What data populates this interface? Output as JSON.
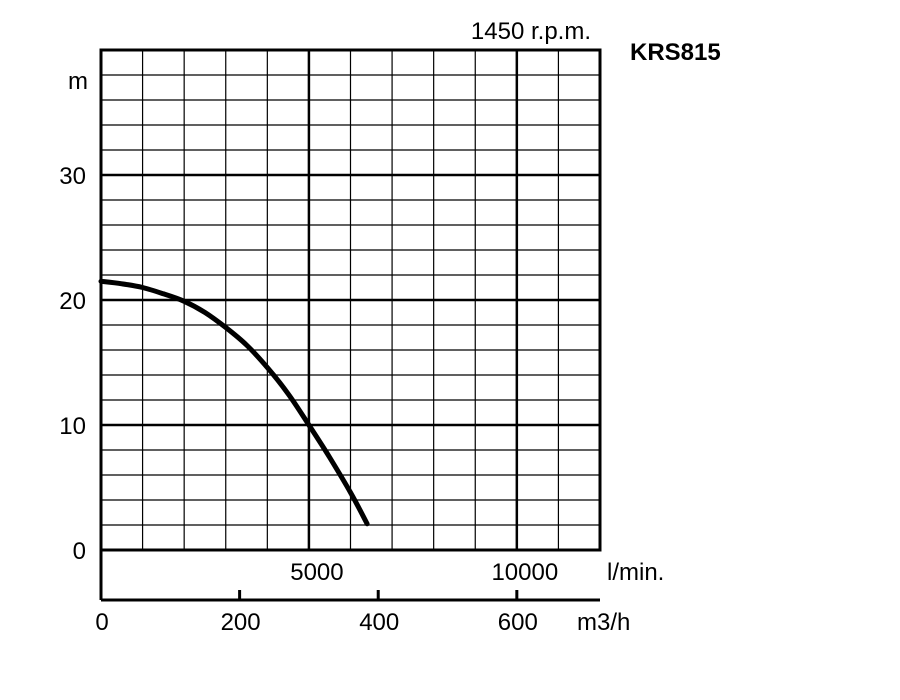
{
  "chart_data": {
    "type": "line",
    "title": "KRS815",
    "subtitle": "1450 r.p.m.",
    "ylabel": "m",
    "xlabel_lpm": "l/min.",
    "xlabel_m3h": "m3/h",
    "ylim": [
      0,
      40
    ],
    "xlim_lpm": [
      0,
      12000
    ],
    "y_ticks": [
      "0",
      "10",
      "20",
      "30"
    ],
    "y_tick_values": [
      0,
      10,
      20,
      30
    ],
    "lpm_ticks": [
      "5000",
      "10000"
    ],
    "lpm_tick_values": [
      5000,
      10000
    ],
    "m3h_ticks": [
      "0",
      "200",
      "400",
      "600"
    ],
    "m3h_tick_values": [
      0,
      200,
      400,
      600
    ],
    "grid": true,
    "series": [
      {
        "x": [
          0,
          500,
          1000,
          1500,
          2000,
          2500,
          3000,
          3500,
          4000,
          4500,
          5000,
          5500,
          6000,
          6400
        ],
        "y": [
          21.5,
          21.3,
          21.0,
          20.5,
          19.9,
          19.0,
          17.8,
          16.4,
          14.6,
          12.5,
          10.0,
          7.4,
          4.6,
          2.1
        ]
      }
    ]
  }
}
